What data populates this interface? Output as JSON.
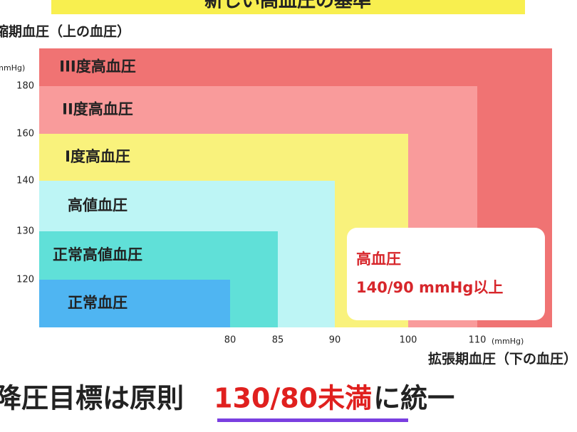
{
  "chart_data": {
    "type": "nested-region",
    "title": "新しい高血圧の基準",
    "y_title": "収縮期血圧（上の血圧）",
    "x_title": "拡張期血圧（下の血圧）",
    "y_unit": "(mmHg)",
    "x_unit": "(mmHg)",
    "yticks": [
      120,
      130,
      140,
      160,
      180
    ],
    "xticks": [
      80,
      85,
      90,
      100,
      110
    ],
    "regions": [
      {
        "name": "III度高血圧",
        "color": "#f07373"
      },
      {
        "name": "II度高血圧",
        "color": "#f99b9b",
        "x": 110,
        "y": 180
      },
      {
        "name": "I度高血圧",
        "color": "#f9f27c",
        "x": 100,
        "y": 160
      },
      {
        "name": "高値血圧",
        "color": "#bdf5f5",
        "x": 90,
        "y": 140
      },
      {
        "name": "正常高値血圧",
        "color": "#60e0d8",
        "x": 85,
        "y": 130
      },
      {
        "name": "正常血圧",
        "color": "#4fb5f2",
        "x": 80,
        "y": 120
      }
    ],
    "callout": {
      "title": "高血圧",
      "text": "140/90 mmHg以上"
    },
    "caption": {
      "before": "降圧目標は原則",
      "highlight": "130/80未満",
      "after": "に統一"
    }
  }
}
